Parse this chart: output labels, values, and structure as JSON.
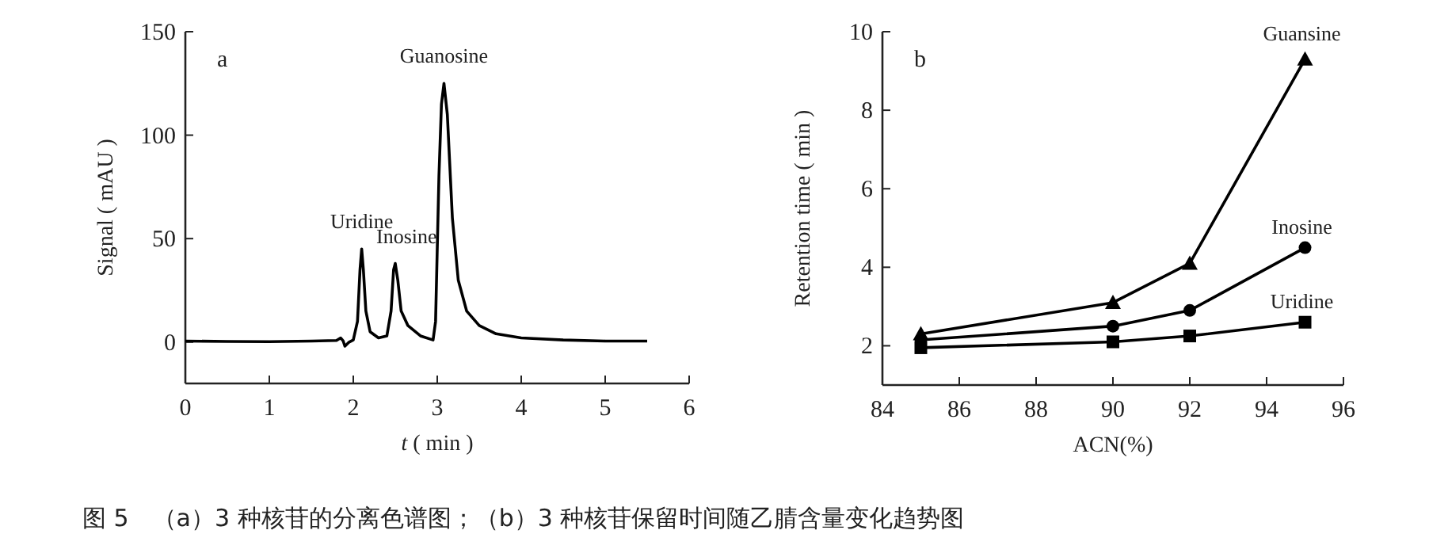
{
  "chart_data": [
    {
      "type": "line",
      "title": "a",
      "xlabel": "*t* ( min )",
      "ylabel": "Signal ( mAU )",
      "xlim": [
        0,
        6
      ],
      "xticks": [
        0,
        1,
        2,
        3,
        4,
        5,
        6
      ],
      "ylim": [
        -20,
        150
      ],
      "yticks": [
        0,
        50,
        100,
        150
      ],
      "series": [
        {
          "color": "#000000",
          "x": [
            0,
            0.5,
            1.0,
            1.5,
            1.8,
            1.85,
            1.88,
            1.9,
            1.95,
            2.0,
            2.05,
            2.08,
            2.1,
            2.12,
            2.15,
            2.2,
            2.3,
            2.4,
            2.45,
            2.48,
            2.5,
            2.53,
            2.57,
            2.65,
            2.8,
            2.95,
            2.98,
            3.02,
            3.05,
            3.08,
            3.12,
            3.18,
            3.25,
            3.35,
            3.5,
            3.7,
            4.0,
            4.5,
            5.0,
            5.5
          ],
          "values": [
            0.5,
            0.3,
            0.2,
            0.5,
            0.8,
            2,
            0.5,
            -2,
            0,
            1,
            10,
            35,
            45,
            35,
            15,
            5,
            2,
            3,
            15,
            35,
            38,
            30,
            15,
            8,
            3,
            1,
            10,
            80,
            115,
            125,
            110,
            60,
            30,
            15,
            8,
            4,
            2,
            1,
            0.5,
            0.5
          ]
        }
      ],
      "annotations": [
        {
          "text": "Uridine",
          "x": 2.1,
          "y": 45
        },
        {
          "text": "Inosine",
          "x": 2.5,
          "y": 38
        },
        {
          "text": "Guanosine",
          "x": 3.08,
          "y": 125
        },
        "图 5　（a）3 种核苷的分离色谱图；（b）3 种核苷保留时间随乙腈含量变化趋势图"
      ]
    },
    {
      "type": "line",
      "title": "b",
      "xlabel": "ACN(%)",
      "ylabel": "Retention  time ( min )",
      "xlim": [
        84,
        96
      ],
      "xticks": [
        84,
        86,
        88,
        90,
        92,
        94,
        96
      ],
      "ylim": [
        1,
        10
      ],
      "yticks": [
        2,
        4,
        6,
        8,
        10
      ],
      "x": [
        85,
        90,
        92,
        95
      ],
      "series": [
        {
          "name": "Uridine",
          "color": "#000000",
          "marker": "square",
          "values": [
            1.95,
            2.1,
            2.25,
            2.6
          ]
        },
        {
          "name": "Inosine",
          "color": "#000000",
          "marker": "circle",
          "values": [
            2.15,
            2.5,
            2.9,
            4.5
          ]
        },
        {
          "name": "Guansine",
          "color": "#000000",
          "marker": "triangle",
          "values": [
            2.3,
            3.1,
            4.1,
            9.3
          ]
        }
      ]
    }
  ]
}
